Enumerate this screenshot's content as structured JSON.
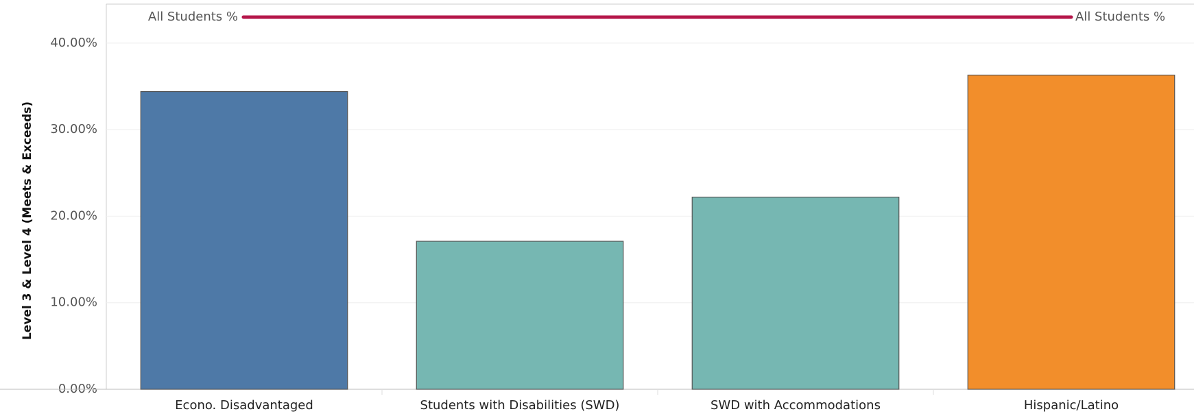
{
  "chart_data": {
    "type": "bar",
    "y_axis_label": "Level 3 & Level 4 (Meets & Exceeds)",
    "categories": [
      "Econo. Disadvantaged",
      "Students with Disabilities (SWD)",
      "SWD with Accommodations",
      "Hispanic/Latino"
    ],
    "values": [
      34.4,
      17.1,
      22.2,
      36.3
    ],
    "colors": [
      "#4e79a7",
      "#76b7b2",
      "#76b7b2",
      "#f28e2b"
    ],
    "ylim": [
      0,
      44.5
    ],
    "yticks": [
      {
        "value": 0,
        "label": "0.00%"
      },
      {
        "value": 10,
        "label": "10.00%"
      },
      {
        "value": 20,
        "label": "20.00%"
      },
      {
        "value": 30,
        "label": "30.00%"
      },
      {
        "value": 40,
        "label": "40.00%"
      }
    ],
    "grid": true,
    "reference_line": {
      "label": "All Students %",
      "value": 43.0,
      "color": "#b5164a"
    }
  }
}
